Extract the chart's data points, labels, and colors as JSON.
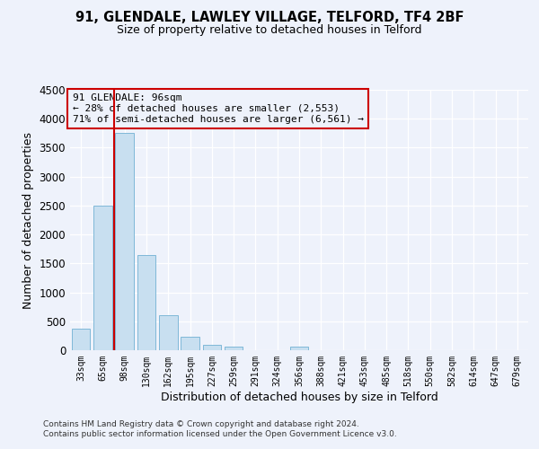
{
  "title": "91, GLENDALE, LAWLEY VILLAGE, TELFORD, TF4 2BF",
  "subtitle": "Size of property relative to detached houses in Telford",
  "xlabel": "Distribution of detached houses by size in Telford",
  "ylabel": "Number of detached properties",
  "bin_labels": [
    "33sqm",
    "65sqm",
    "98sqm",
    "130sqm",
    "162sqm",
    "195sqm",
    "227sqm",
    "259sqm",
    "291sqm",
    "324sqm",
    "356sqm",
    "388sqm",
    "421sqm",
    "453sqm",
    "485sqm",
    "518sqm",
    "550sqm",
    "582sqm",
    "614sqm",
    "647sqm",
    "679sqm"
  ],
  "bar_values": [
    380,
    2500,
    3750,
    1640,
    600,
    240,
    100,
    60,
    0,
    0,
    60,
    0,
    0,
    0,
    0,
    0,
    0,
    0,
    0,
    0,
    0
  ],
  "bar_color": "#c8dff0",
  "bar_edgecolor": "#7fb8d8",
  "property_line_idx": 2,
  "property_line_color": "#cc0000",
  "ylim": [
    0,
    4500
  ],
  "yticks": [
    0,
    500,
    1000,
    1500,
    2000,
    2500,
    3000,
    3500,
    4000,
    4500
  ],
  "annotation_title": "91 GLENDALE: 96sqm",
  "annotation_line1": "← 28% of detached houses are smaller (2,553)",
  "annotation_line2": "71% of semi-detached houses are larger (6,561) →",
  "annotation_box_color": "#cc0000",
  "footer_line1": "Contains HM Land Registry data © Crown copyright and database right 2024.",
  "footer_line2": "Contains public sector information licensed under the Open Government Licence v3.0.",
  "background_color": "#eef2fb"
}
